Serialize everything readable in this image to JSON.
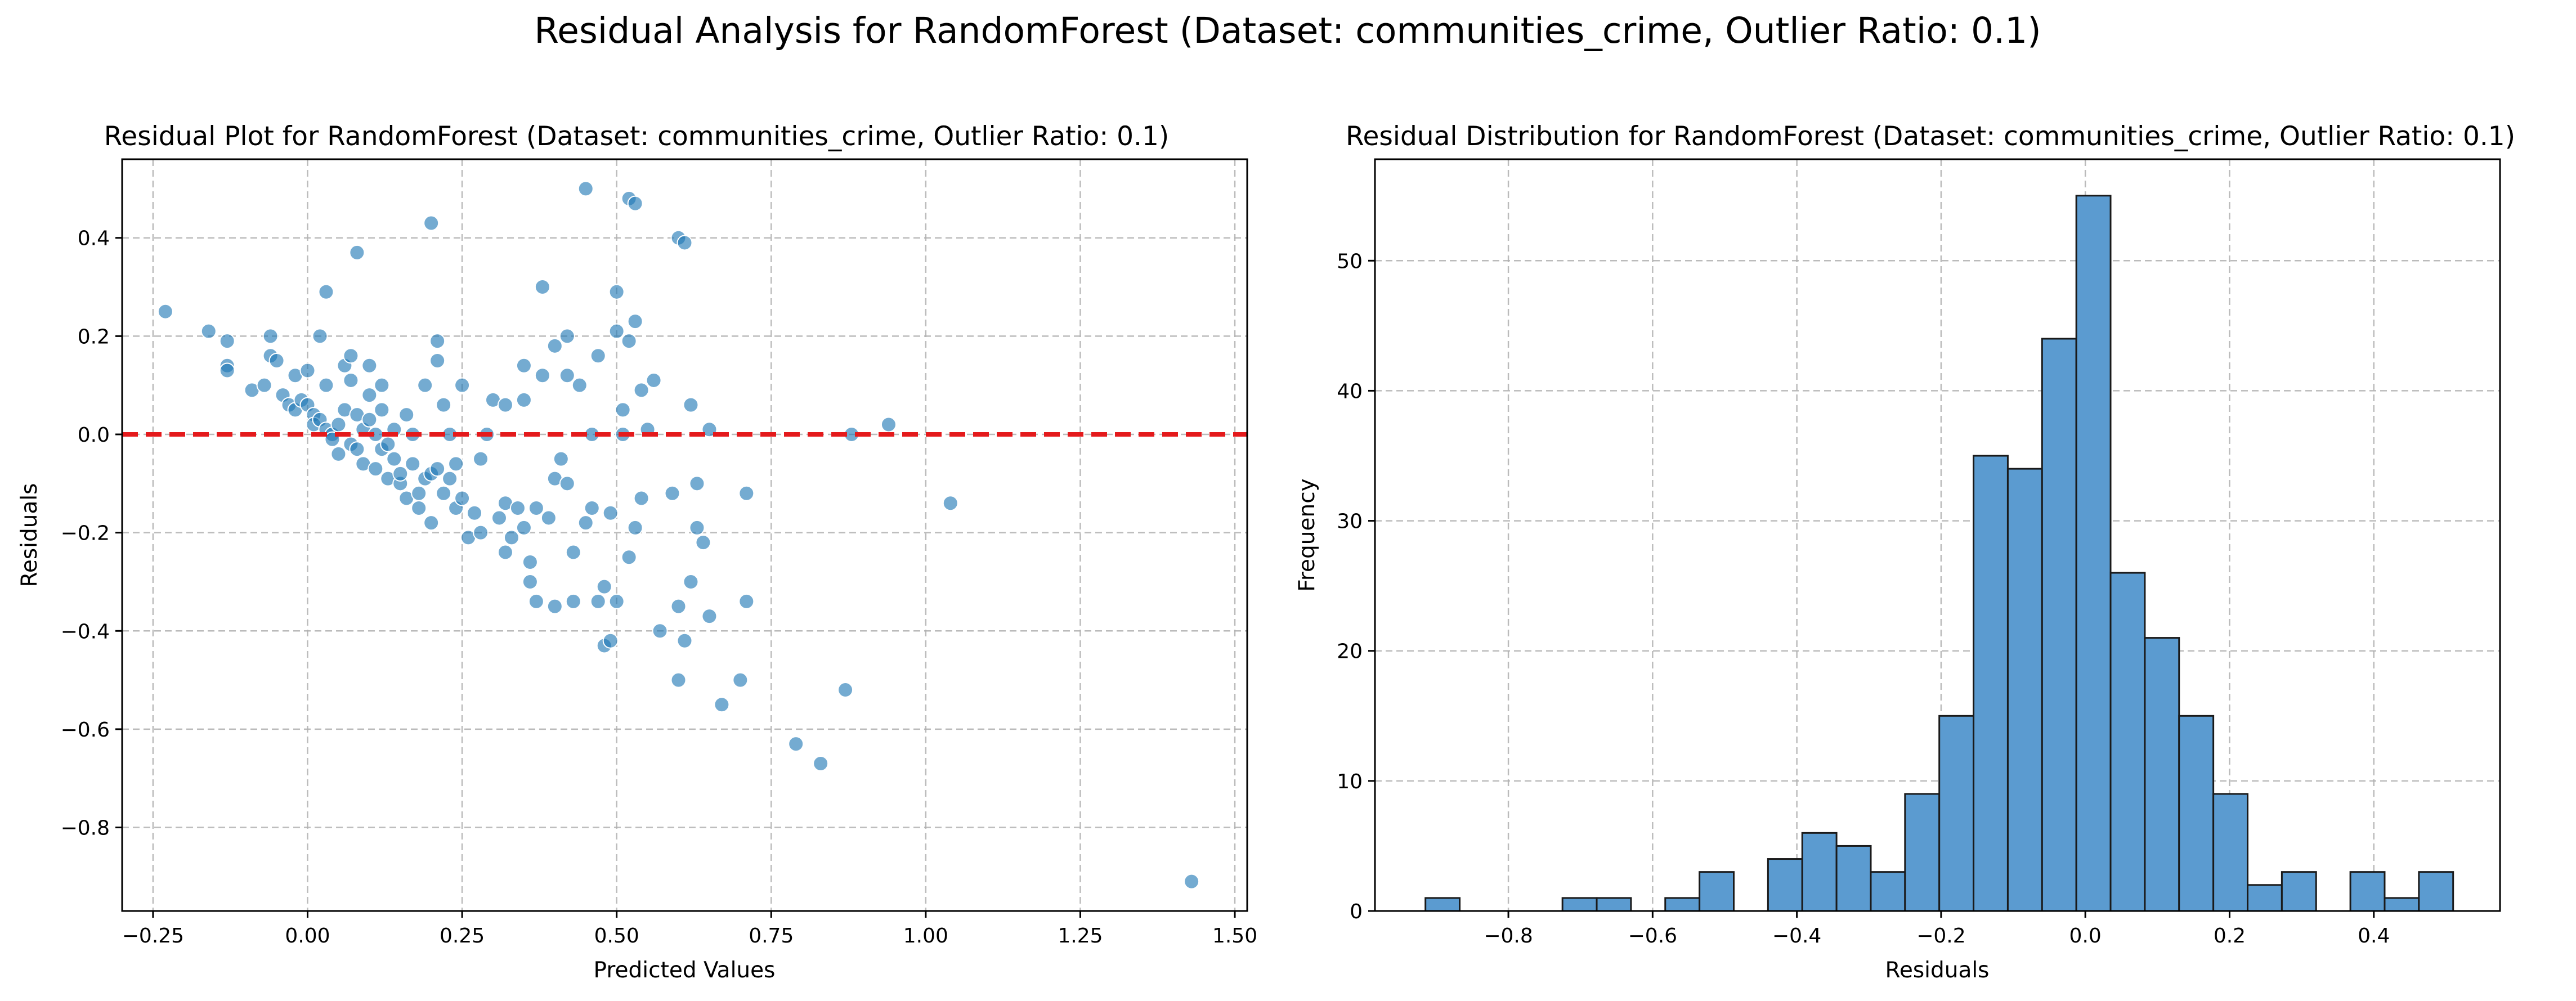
{
  "figure": {
    "suptitle": "Residual Analysis for RandomForest (Dataset: communities_crime, Outlier Ratio: 0.1)"
  },
  "colors": {
    "points": "#1f77b4",
    "zero_line": "#e41a1c",
    "bars": "#5b9bd0",
    "bar_edge": "#1a1a1a",
    "grid": "#b0b0b0"
  },
  "chart_data": [
    {
      "type": "scatter",
      "title": "Residual Plot for RandomForest (Dataset: communities_crime, Outlier Ratio: 0.1)",
      "xlabel": "Predicted Values",
      "ylabel": "Residuals",
      "xlim": [
        -0.3,
        1.52
      ],
      "ylim": [
        -0.97,
        0.56
      ],
      "xticks": [
        -0.25,
        0.0,
        0.25,
        0.5,
        0.75,
        1.0,
        1.25,
        1.5
      ],
      "xtick_labels": [
        "−0.25",
        "0.00",
        "0.25",
        "0.50",
        "0.75",
        "1.00",
        "1.25",
        "1.50"
      ],
      "yticks": [
        -0.8,
        -0.6,
        -0.4,
        -0.2,
        0.0,
        0.2,
        0.4
      ],
      "ytick_labels": [
        "−0.8",
        "−0.6",
        "−0.4",
        "−0.2",
        "0.0",
        "0.2",
        "0.4"
      ],
      "grid": true,
      "reference_line": {
        "y": 0.0,
        "style": "dashed"
      },
      "points": [
        [
          -0.23,
          0.25
        ],
        [
          -0.16,
          0.21
        ],
        [
          -0.13,
          0.19
        ],
        [
          -0.13,
          0.14
        ],
        [
          -0.13,
          0.13
        ],
        [
          -0.09,
          0.09
        ],
        [
          -0.07,
          0.1
        ],
        [
          -0.06,
          0.16
        ],
        [
          -0.06,
          0.2
        ],
        [
          -0.05,
          0.15
        ],
        [
          -0.04,
          0.08
        ],
        [
          -0.03,
          0.06
        ],
        [
          -0.02,
          0.05
        ],
        [
          -0.02,
          0.12
        ],
        [
          -0.01,
          0.07
        ],
        [
          0.0,
          0.13
        ],
        [
          0.0,
          0.06
        ],
        [
          0.01,
          0.04
        ],
        [
          0.01,
          0.02
        ],
        [
          0.02,
          0.2
        ],
        [
          0.02,
          0.03
        ],
        [
          0.03,
          0.29
        ],
        [
          0.03,
          0.01
        ],
        [
          0.03,
          0.1
        ],
        [
          0.04,
          0.0
        ],
        [
          0.04,
          -0.01
        ],
        [
          0.05,
          0.02
        ],
        [
          0.05,
          -0.04
        ],
        [
          0.06,
          0.05
        ],
        [
          0.06,
          0.14
        ],
        [
          0.07,
          0.16
        ],
        [
          0.07,
          0.11
        ],
        [
          0.07,
          -0.02
        ],
        [
          0.08,
          0.04
        ],
        [
          0.08,
          0.37
        ],
        [
          0.08,
          -0.03
        ],
        [
          0.09,
          0.01
        ],
        [
          0.09,
          -0.06
        ],
        [
          0.1,
          0.08
        ],
        [
          0.1,
          0.03
        ],
        [
          0.1,
          0.14
        ],
        [
          0.11,
          0.0
        ],
        [
          0.11,
          -0.07
        ],
        [
          0.12,
          0.1
        ],
        [
          0.12,
          -0.03
        ],
        [
          0.12,
          0.05
        ],
        [
          0.13,
          -0.09
        ],
        [
          0.13,
          -0.02
        ],
        [
          0.14,
          0.01
        ],
        [
          0.14,
          -0.05
        ],
        [
          0.15,
          -0.1
        ],
        [
          0.15,
          -0.08
        ],
        [
          0.16,
          0.04
        ],
        [
          0.16,
          -0.13
        ],
        [
          0.17,
          -0.06
        ],
        [
          0.17,
          0.0
        ],
        [
          0.18,
          -0.12
        ],
        [
          0.18,
          -0.15
        ],
        [
          0.19,
          0.1
        ],
        [
          0.19,
          -0.09
        ],
        [
          0.2,
          0.43
        ],
        [
          0.2,
          -0.08
        ],
        [
          0.2,
          -0.18
        ],
        [
          0.21,
          0.19
        ],
        [
          0.21,
          0.15
        ],
        [
          0.21,
          -0.07
        ],
        [
          0.22,
          0.06
        ],
        [
          0.22,
          -0.12
        ],
        [
          0.23,
          0.0
        ],
        [
          0.23,
          -0.09
        ],
        [
          0.24,
          -0.06
        ],
        [
          0.24,
          -0.15
        ],
        [
          0.25,
          0.1
        ],
        [
          0.25,
          -0.13
        ],
        [
          0.26,
          -0.21
        ],
        [
          0.27,
          -0.16
        ],
        [
          0.28,
          -0.05
        ],
        [
          0.28,
          -0.2
        ],
        [
          0.29,
          0.0
        ],
        [
          0.3,
          0.07
        ],
        [
          0.31,
          -0.17
        ],
        [
          0.32,
          -0.24
        ],
        [
          0.32,
          -0.14
        ],
        [
          0.32,
          0.06
        ],
        [
          0.33,
          -0.21
        ],
        [
          0.34,
          -0.15
        ],
        [
          0.35,
          0.14
        ],
        [
          0.35,
          0.07
        ],
        [
          0.35,
          -0.19
        ],
        [
          0.36,
          -0.3
        ],
        [
          0.36,
          -0.26
        ],
        [
          0.37,
          -0.34
        ],
        [
          0.37,
          -0.15
        ],
        [
          0.38,
          0.3
        ],
        [
          0.38,
          0.12
        ],
        [
          0.39,
          -0.17
        ],
        [
          0.4,
          0.18
        ],
        [
          0.4,
          -0.35
        ],
        [
          0.4,
          -0.09
        ],
        [
          0.41,
          -0.05
        ],
        [
          0.42,
          0.2
        ],
        [
          0.42,
          0.12
        ],
        [
          0.42,
          -0.1
        ],
        [
          0.43,
          -0.24
        ],
        [
          0.43,
          -0.34
        ],
        [
          0.44,
          0.1
        ],
        [
          0.45,
          -0.18
        ],
        [
          0.45,
          0.5
        ],
        [
          0.46,
          0.0
        ],
        [
          0.46,
          -0.15
        ],
        [
          0.47,
          -0.34
        ],
        [
          0.47,
          0.16
        ],
        [
          0.48,
          -0.43
        ],
        [
          0.48,
          -0.31
        ],
        [
          0.49,
          -0.16
        ],
        [
          0.49,
          -0.42
        ],
        [
          0.5,
          0.29
        ],
        [
          0.5,
          -0.34
        ],
        [
          0.5,
          0.21
        ],
        [
          0.51,
          0.05
        ],
        [
          0.51,
          0.0
        ],
        [
          0.52,
          0.48
        ],
        [
          0.52,
          0.19
        ],
        [
          0.52,
          -0.25
        ],
        [
          0.53,
          0.47
        ],
        [
          0.53,
          0.23
        ],
        [
          0.53,
          -0.19
        ],
        [
          0.54,
          -0.13
        ],
        [
          0.54,
          0.09
        ],
        [
          0.55,
          0.01
        ],
        [
          0.56,
          0.11
        ],
        [
          0.57,
          -0.4
        ],
        [
          0.59,
          -0.12
        ],
        [
          0.6,
          0.4
        ],
        [
          0.6,
          -0.35
        ],
        [
          0.6,
          -0.5
        ],
        [
          0.61,
          0.39
        ],
        [
          0.61,
          -0.42
        ],
        [
          0.62,
          -0.3
        ],
        [
          0.62,
          0.06
        ],
        [
          0.63,
          -0.1
        ],
        [
          0.63,
          -0.19
        ],
        [
          0.64,
          -0.22
        ],
        [
          0.65,
          -0.37
        ],
        [
          0.65,
          0.01
        ],
        [
          0.67,
          -0.55
        ],
        [
          0.7,
          -0.5
        ],
        [
          0.71,
          -0.12
        ],
        [
          0.71,
          -0.34
        ],
        [
          0.79,
          -0.63
        ],
        [
          0.83,
          -0.67
        ],
        [
          0.87,
          -0.52
        ],
        [
          0.88,
          0.0
        ],
        [
          0.94,
          0.02
        ],
        [
          1.04,
          -0.14
        ],
        [
          1.43,
          -0.91
        ]
      ]
    },
    {
      "type": "bar",
      "title": "Residual Distribution for RandomForest (Dataset: communities_crime, Outlier Ratio: 0.1)",
      "xlabel": "Residuals",
      "ylabel": "Frequency",
      "xlim": [
        -0.985,
        0.575
      ],
      "ylim": [
        0,
        57.8
      ],
      "xticks": [
        -0.8,
        -0.6,
        -0.4,
        -0.2,
        0.0,
        0.2,
        0.4
      ],
      "xtick_labels": [
        "−0.8",
        "−0.6",
        "−0.4",
        "−0.2",
        "0.0",
        "0.2",
        "0.4"
      ],
      "yticks": [
        0,
        10,
        20,
        30,
        40,
        50
      ],
      "ytick_labels": [
        "0",
        "10",
        "20",
        "30",
        "40",
        "50"
      ],
      "grid": true,
      "bin_start": -0.915,
      "bin_width": 0.0475,
      "values": [
        1,
        0,
        0,
        0,
        1,
        1,
        0,
        1,
        3,
        0,
        4,
        6,
        5,
        3,
        9,
        15,
        35,
        34,
        44,
        55,
        26,
        21,
        15,
        9,
        2,
        3,
        0,
        3,
        1,
        3
      ]
    }
  ]
}
